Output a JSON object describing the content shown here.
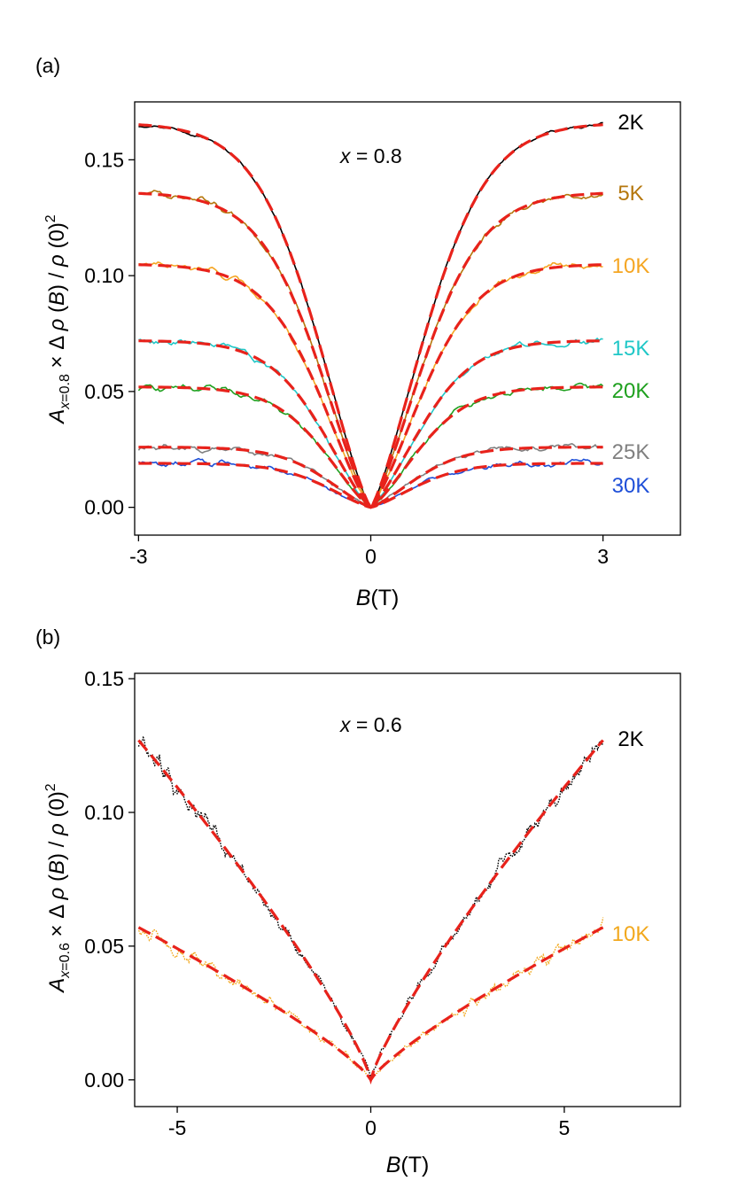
{
  "chart_data": [
    {
      "type": "line",
      "panel_label": "(a)",
      "annotation": "x = 0.8",
      "annotation_var": "x",
      "annotation_rest": " = 0.8",
      "xlabel_var": "B",
      "xlabel_unit": "(T)",
      "ylabel": "A_{x=0.8} × Δρ(B) / ρ(0)^2",
      "xlim": [
        -3.05,
        4.0
      ],
      "ylim": [
        -0.012,
        0.175
      ],
      "xticks": [
        -3,
        0,
        3
      ],
      "xtick_labels": [
        "-3",
        "0",
        "3"
      ],
      "yticks": [
        0.0,
        0.05,
        0.1,
        0.15
      ],
      "ytick_labels": [
        "0.00",
        "0.05",
        "0.10",
        "0.15"
      ],
      "fit_style": {
        "color": "#e8221b",
        "dash": "dashed"
      },
      "series": [
        {
          "name": "2K",
          "color": "#000000",
          "saturation": 0.166,
          "field_scale": 1.25,
          "noise": 0.0012
        },
        {
          "name": "5K",
          "color": "#b5770d",
          "saturation": 0.136,
          "field_scale": 1.2,
          "noise": 0.0022
        },
        {
          "name": "10K",
          "color": "#f5a623",
          "saturation": 0.105,
          "field_scale": 1.15,
          "noise": 0.0022
        },
        {
          "name": "15K",
          "color": "#20c7c7",
          "saturation": 0.072,
          "field_scale": 1.1,
          "noise": 0.0025
        },
        {
          "name": "20K",
          "color": "#1fa01f",
          "saturation": 0.052,
          "field_scale": 1.05,
          "noise": 0.0025
        },
        {
          "name": "25K",
          "color": "#808080",
          "saturation": 0.026,
          "field_scale": 1.0,
          "noise": 0.0022
        },
        {
          "name": "30K",
          "color": "#1e4fd8",
          "saturation": 0.019,
          "field_scale": 1.0,
          "noise": 0.0022
        }
      ]
    },
    {
      "type": "line",
      "panel_label": "(b)",
      "annotation": "x = 0.6",
      "annotation_var": "x",
      "annotation_rest": " = 0.6",
      "xlabel_var": "B",
      "xlabel_unit": "(T)",
      "ylabel": "A_{x=0.6} × Δρ(B) / ρ(0)^2",
      "xlim": [
        -6.1,
        8.0
      ],
      "ylim": [
        -0.01,
        0.152
      ],
      "xticks": [
        -5,
        0,
        5
      ],
      "xtick_labels": [
        "-5",
        "0",
        "5"
      ],
      "yticks": [
        0.0,
        0.05,
        0.1,
        0.15
      ],
      "ytick_labels": [
        "0.00",
        "0.05",
        "0.10",
        "0.15"
      ],
      "fit_style": {
        "color": "#e8221b",
        "dash": "dashed"
      },
      "series": [
        {
          "name": "2K",
          "color": "#000000",
          "value_at_6T": 0.127,
          "value_at_0T": 0.0,
          "noise": 0.005,
          "line_style": "dotted"
        },
        {
          "name": "10K",
          "color": "#f2a81d",
          "value_at_6T": 0.057,
          "value_at_0T": 0.0,
          "noise": 0.004,
          "line_style": "dotted"
        }
      ]
    }
  ]
}
